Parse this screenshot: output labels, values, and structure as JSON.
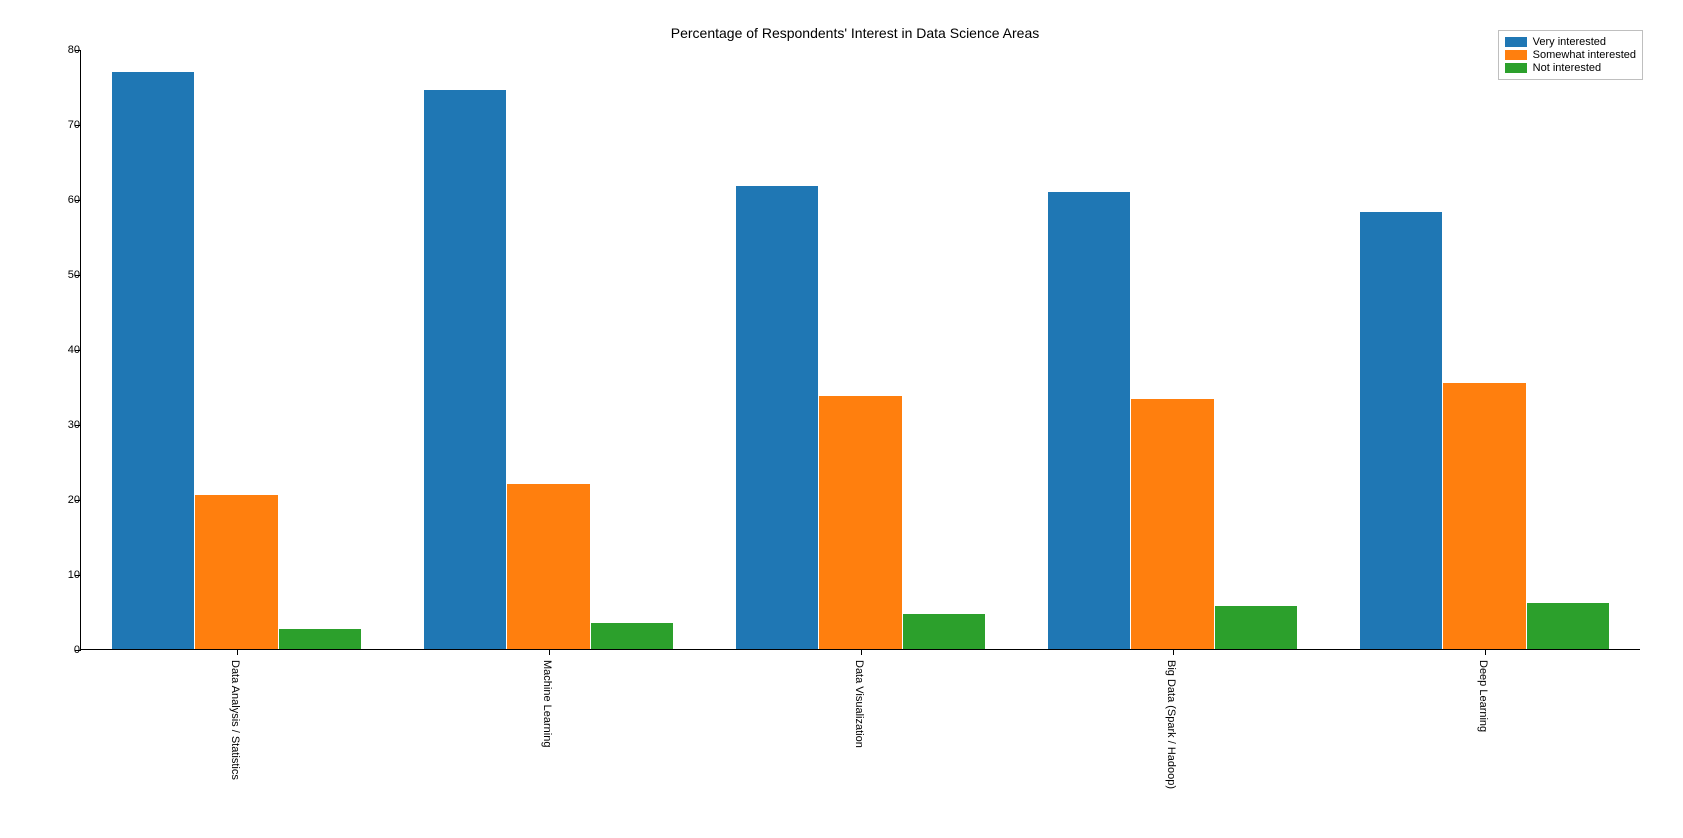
{
  "chart": {
    "type": "bar-grouped",
    "title": "Percentage of Respondents' Interest in Data Science Areas",
    "title_fontsize": 14,
    "background_color": "#ffffff",
    "categories": [
      "Data Analysis / Statistics",
      "Machine Learning",
      "Data Visualization",
      "Big Data (Spark / Hadoop)",
      "Deep Learning"
    ],
    "series": [
      {
        "name": "Very interested",
        "color": "#1f77b4",
        "values": [
          77,
          74.5,
          61.7,
          61,
          58.3
        ]
      },
      {
        "name": "Somewhat interested",
        "color": "#ff7f0e",
        "values": [
          20.5,
          22,
          33.7,
          33.3,
          35.5
        ]
      },
      {
        "name": "Not interested",
        "color": "#2ca02c",
        "values": [
          2.7,
          3.5,
          4.7,
          5.8,
          6.2
        ]
      }
    ],
    "ylim": [
      0,
      80
    ],
    "ytick_step": 10,
    "yticks": [
      0,
      10,
      20,
      30,
      40,
      50,
      60,
      70,
      80
    ],
    "label_fontsize": 11,
    "bar_group_width": 0.8,
    "bar_width": 0.267,
    "xlabel_rotation": 90,
    "border_color": "#000000",
    "legend_border_color": "#bfbfbf",
    "legend_position": "upper right"
  }
}
